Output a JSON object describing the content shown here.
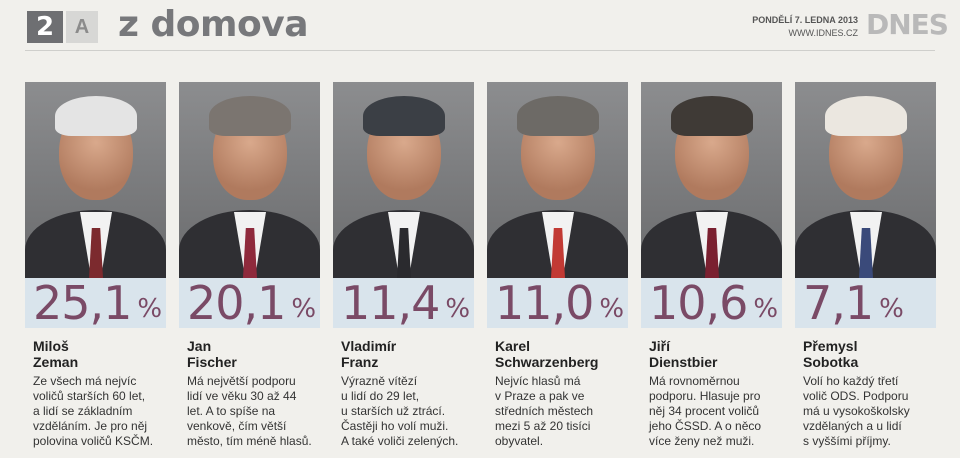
{
  "header": {
    "page_number": "2",
    "section_letter": "A",
    "section_title": "z domova",
    "date": "PONDĚLÍ 7. LEDNA 2013",
    "url": "WWW.IDNES.CZ",
    "logo": "DNES"
  },
  "colors": {
    "percent": "#7a4a66",
    "percent_bg": "#d9e4ec",
    "header_gray": "#77787b"
  },
  "candidates": [
    {
      "percent": "25,1",
      "first_name": "Miloš",
      "last_name": "Zeman",
      "lines": [
        "Ze všech má nejvíc",
        "voličů starších 60 let,",
        "a lidí se základním",
        "vzděláním. Je pro něj",
        "polovina voličů KSČM."
      ],
      "hair": "#e4e4e4",
      "tie": "#7c2a2e"
    },
    {
      "percent": "20,1",
      "first_name": "Jan",
      "last_name": "Fischer",
      "lines": [
        "Má největší podporu",
        "lidí ve věku 30 až 44",
        "let. A to spíše na",
        "venkově, čím větší",
        "město, tím méně hlasů."
      ],
      "hair": "#7b7570",
      "tie": "#8f2a3c"
    },
    {
      "percent": "11,4",
      "first_name": "Vladimír",
      "last_name": "Franz",
      "lines": [
        "Výrazně vítězí",
        "u lidí do 29 let,",
        "u starších už ztrácí.",
        "Častěji ho volí muži.",
        "A také voliči zelených."
      ],
      "hair": "#3b3f45",
      "tie": "#2a2a2e"
    },
    {
      "percent": "11,0",
      "first_name": "Karel",
      "last_name": "Schwarzenberg",
      "lines": [
        "Nejvíc hlasů má",
        "v Praze a pak ve",
        "středních městech",
        "mezi 5 až 20 tisíci",
        "obyvatel."
      ],
      "hair": "#6d6a66",
      "tie": "#c23a34"
    },
    {
      "percent": "10,6",
      "first_name": "Jiří",
      "last_name": "Dienstbier",
      "lines": [
        "Má rovnoměrnou",
        "podporu. Hlasuje pro",
        "něj 34 procent voličů",
        "jeho ČSSD. A o něco",
        "více ženy než muži."
      ],
      "hair": "#3f3a36",
      "tie": "#7a2030"
    },
    {
      "percent": "7,1",
      "first_name": "Přemysl",
      "last_name": "Sobotka",
      "lines": [
        "Volí ho každý třetí",
        "volič ODS. Podporu",
        "má u vysokoškolsky",
        "vzdělaných a u lidí",
        "s vyššími příjmy."
      ],
      "hair": "#ebe7e0",
      "tie": "#3a4a7a"
    }
  ],
  "percent_sign": "%"
}
